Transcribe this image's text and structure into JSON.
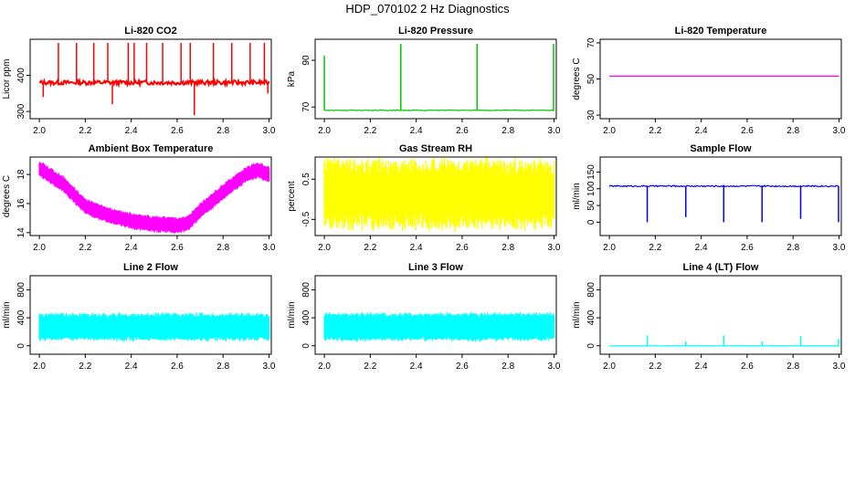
{
  "title": "HDP_070102  2 Hz Diagnostics",
  "chart_data": [
    {
      "type": "line",
      "title": "Li-820 CO2",
      "xlabel": "",
      "ylabel": "Licor ppm",
      "color": "#ff0000",
      "x_range": [
        2.0,
        3.0
      ],
      "xlim": [
        1.96,
        3.01
      ],
      "ylim": [
        280,
        500
      ],
      "x_ticks": [
        "2.0",
        "2.2",
        "2.4",
        "2.6",
        "2.8",
        "3.0"
      ],
      "y_ticks": [
        300,
        400
      ],
      "baseline": 380,
      "noise": 6,
      "band": 0,
      "spikes": [
        [
          2.017,
          340
        ],
        [
          2.083,
          490
        ],
        [
          2.162,
          490
        ],
        [
          2.237,
          490
        ],
        [
          2.298,
          490
        ],
        [
          2.318,
          320
        ],
        [
          2.387,
          490
        ],
        [
          2.413,
          490
        ],
        [
          2.467,
          490
        ],
        [
          2.537,
          490
        ],
        [
          2.617,
          490
        ],
        [
          2.657,
          490
        ],
        [
          2.675,
          290
        ],
        [
          2.758,
          490
        ],
        [
          2.838,
          490
        ],
        [
          2.918,
          490
        ],
        [
          2.98,
          490
        ],
        [
          2.995,
          350
        ]
      ],
      "trend": []
    },
    {
      "type": "line",
      "title": "Li-820 Pressure",
      "xlabel": "",
      "ylabel": "kPa",
      "color": "#00c800",
      "x_range": [
        2.0,
        3.0
      ],
      "xlim": [
        1.96,
        3.01
      ],
      "ylim": [
        65,
        99
      ],
      "x_ticks": [
        "2.0",
        "2.2",
        "2.4",
        "2.6",
        "2.8",
        "3.0"
      ],
      "y_ticks": [
        70,
        90
      ],
      "baseline": 68.6,
      "noise": 0.15,
      "band": 0,
      "spikes": [
        [
          2.0,
          92
        ],
        [
          2.333,
          97
        ],
        [
          2.665,
          97
        ],
        [
          2.665,
          97
        ],
        [
          2.998,
          97
        ]
      ],
      "trend": []
    },
    {
      "type": "line",
      "title": "Li-820 Temperature",
      "xlabel": "",
      "ylabel": "degrees C",
      "color": "#ff00ff",
      "x_range": [
        2.0,
        3.0
      ],
      "xlim": [
        1.96,
        3.01
      ],
      "ylim": [
        28,
        72
      ],
      "x_ticks": [
        "2.0",
        "2.2",
        "2.4",
        "2.6",
        "2.8",
        "3.0"
      ],
      "y_ticks": [
        30,
        50,
        70
      ],
      "baseline": 51.5,
      "noise": 0,
      "band": 0,
      "spikes": [],
      "trend": []
    },
    {
      "type": "line",
      "title": "Ambient Box Temperature",
      "xlabel": "",
      "ylabel": "degrees C",
      "color": "#ff00ff",
      "x_range": [
        2.0,
        3.0
      ],
      "xlim": [
        1.96,
        3.01
      ],
      "ylim": [
        13.8,
        19.2
      ],
      "x_ticks": [
        "2.0",
        "2.2",
        "2.4",
        "2.6",
        "2.8",
        "3.0"
      ],
      "y_ticks": [
        14,
        16,
        18
      ],
      "baseline": 0,
      "noise": 0.15,
      "band": 0.45,
      "spikes": [],
      "trend": [
        [
          2.0,
          18.4
        ],
        [
          2.1,
          17.4
        ],
        [
          2.2,
          15.8
        ],
        [
          2.3,
          15.2
        ],
        [
          2.4,
          14.8
        ],
        [
          2.5,
          14.6
        ],
        [
          2.6,
          14.5
        ],
        [
          2.65,
          14.7
        ],
        [
          2.7,
          15.5
        ],
        [
          2.8,
          16.8
        ],
        [
          2.9,
          18.0
        ],
        [
          2.95,
          18.3
        ],
        [
          3.0,
          18.0
        ]
      ]
    },
    {
      "type": "line",
      "title": "Gas Stream RH",
      "xlabel": "",
      "ylabel": "percent",
      "color": "#ffff00",
      "x_range": [
        2.0,
        3.0
      ],
      "xlim": [
        1.96,
        3.01
      ],
      "ylim": [
        -0.9,
        1.05
      ],
      "x_ticks": [
        "2.0",
        "2.2",
        "2.4",
        "2.6",
        "2.8",
        "3.0"
      ],
      "y_ticks": [
        -0.5,
        0.5
      ],
      "baseline": 0.12,
      "noise": 0.45,
      "band": 0.5,
      "spikes": [],
      "trend": []
    },
    {
      "type": "line",
      "title": "Sample Flow",
      "xlabel": "",
      "ylabel": "ml/min",
      "color": "#0000ff",
      "x_range": [
        2.0,
        3.0
      ],
      "xlim": [
        1.96,
        3.01
      ],
      "ylim": [
        -40,
        195
      ],
      "x_ticks": [
        "2.0",
        "2.2",
        "2.4",
        "2.6",
        "2.8",
        "3.0"
      ],
      "y_ticks": [
        0,
        50,
        100,
        150
      ],
      "baseline": 108,
      "noise": 2,
      "band": 0,
      "spikes": [
        [
          2.165,
          0
        ],
        [
          2.333,
          15
        ],
        [
          2.498,
          0
        ],
        [
          2.665,
          0
        ],
        [
          2.833,
          10
        ],
        [
          2.998,
          0
        ]
      ],
      "trend": []
    },
    {
      "type": "line",
      "title": "Line 2 Flow",
      "xlabel": "",
      "ylabel": "ml/min",
      "color": "#00ffff",
      "x_range": [
        2.0,
        3.0
      ],
      "xlim": [
        1.96,
        3.01
      ],
      "ylim": [
        -120,
        1000
      ],
      "x_ticks": [
        "2.0",
        "2.2",
        "2.4",
        "2.6",
        "2.8",
        "3.0"
      ],
      "y_ticks": [
        0,
        400,
        800
      ],
      "baseline": 270,
      "noise": 40,
      "band": 170,
      "spikes": [],
      "trend": []
    },
    {
      "type": "line",
      "title": "Line 3 Flow",
      "xlabel": "",
      "ylabel": "ml/min",
      "color": "#00ffff",
      "x_range": [
        2.0,
        3.0
      ],
      "xlim": [
        1.96,
        3.01
      ],
      "ylim": [
        -120,
        1000
      ],
      "x_ticks": [
        "2.0",
        "2.2",
        "2.4",
        "2.6",
        "2.8",
        "3.0"
      ],
      "y_ticks": [
        0,
        400,
        800
      ],
      "baseline": 270,
      "noise": 40,
      "band": 175,
      "spikes": [],
      "trend": []
    },
    {
      "type": "line",
      "title": "Line 4 (LT) Flow",
      "xlabel": "",
      "ylabel": "ml/min",
      "color": "#00ffff",
      "x_range": [
        2.0,
        3.0
      ],
      "xlim": [
        1.96,
        3.01
      ],
      "ylim": [
        -120,
        1000
      ],
      "x_ticks": [
        "2.0",
        "2.2",
        "2.4",
        "2.6",
        "2.8",
        "3.0"
      ],
      "y_ticks": [
        0,
        400,
        800
      ],
      "baseline": 0,
      "noise": 2,
      "band": 0,
      "spikes": [
        [
          2.165,
          150
        ],
        [
          2.333,
          60
        ],
        [
          2.498,
          150
        ],
        [
          2.665,
          60
        ],
        [
          2.833,
          140
        ],
        [
          2.998,
          100
        ]
      ],
      "trend": []
    }
  ]
}
